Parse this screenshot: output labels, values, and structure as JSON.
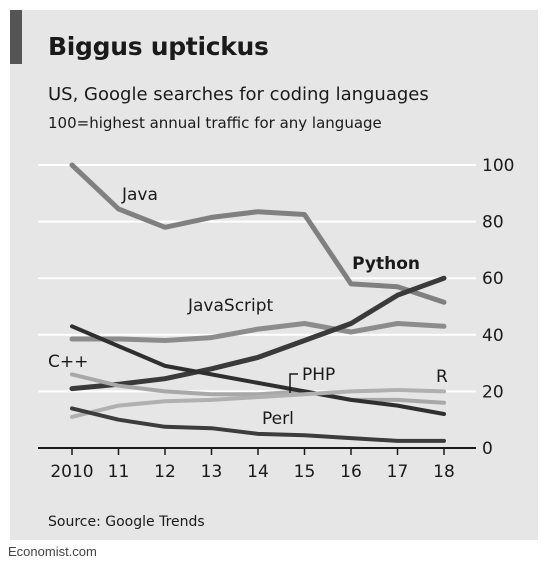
{
  "chart_data": {
    "type": "line",
    "title": "Biggus uptickus",
    "subtitle": "US, Google searches for coding languages",
    "note": "100=highest annual traffic for any language",
    "source": "Source: Google Trends",
    "x": [
      2010,
      2011,
      2012,
      2013,
      2014,
      2015,
      2016,
      2017,
      2018
    ],
    "x_tick_labels": [
      "2010",
      "11",
      "12",
      "13",
      "14",
      "15",
      "16",
      "17",
      "18"
    ],
    "ylim": [
      0,
      100
    ],
    "y_ticks": [
      0,
      20,
      40,
      60,
      80,
      100
    ],
    "grid": true,
    "y_axis_side": "right",
    "legend": "inline labels",
    "series": [
      {
        "name": "Java",
        "color": "#808080",
        "width": 5,
        "bold": false,
        "values": [
          100,
          84.5,
          78,
          81.5,
          83.5,
          82.5,
          58,
          57,
          51.5
        ]
      },
      {
        "name": "JavaScript",
        "color": "#8c8c8c",
        "width": 5,
        "bold": false,
        "values": [
          38.5,
          38.5,
          38,
          39,
          42,
          44,
          41,
          44,
          43
        ]
      },
      {
        "name": "Python",
        "color": "#3a3a3a",
        "width": 5,
        "bold": true,
        "values": [
          21,
          22.5,
          24.5,
          28,
          32,
          38,
          44,
          54,
          60
        ]
      },
      {
        "name": "C++",
        "color": "#a8a8a8",
        "width": 4,
        "bold": false,
        "values": [
          26,
          22,
          20,
          19,
          19,
          20,
          17,
          17,
          16
        ]
      },
      {
        "name": "PHP",
        "color": "#2f2f2f",
        "width": 4,
        "bold": false,
        "values": [
          43,
          36,
          29,
          26,
          23,
          20,
          17,
          15,
          12
        ]
      },
      {
        "name": "R",
        "color": "#b0b0b0",
        "width": 4,
        "bold": false,
        "values": [
          11,
          15,
          16.5,
          17,
          18,
          19,
          20,
          20.5,
          20
        ]
      },
      {
        "name": "Perl",
        "color": "#3c3c3c",
        "width": 4,
        "bold": false,
        "values": [
          14,
          10,
          7.5,
          7,
          5,
          4.5,
          3.5,
          2.5,
          2.5
        ]
      }
    ]
  },
  "footer": "Economist.com"
}
